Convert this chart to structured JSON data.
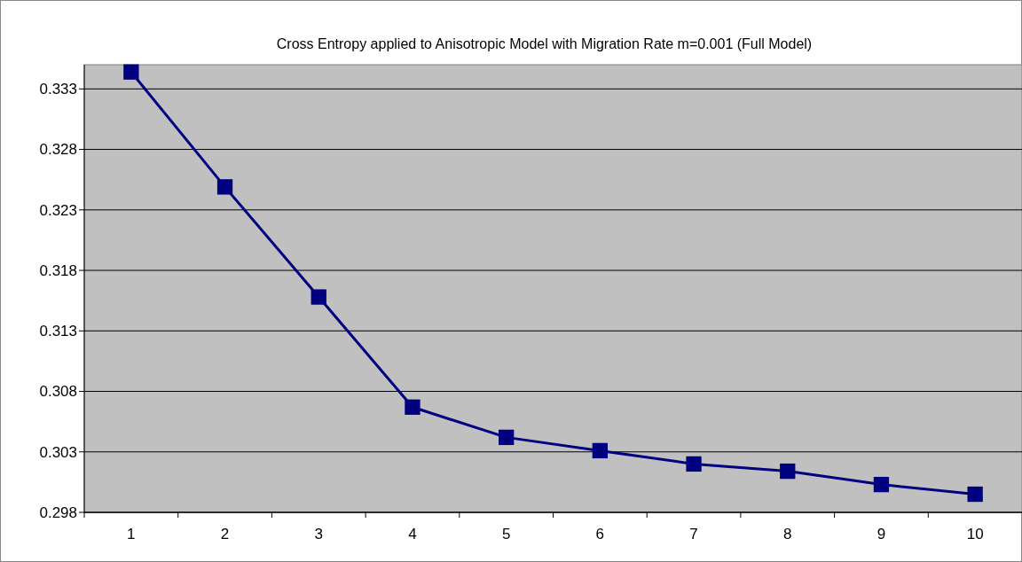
{
  "chart_data": {
    "type": "line",
    "title": "Cross Entropy applied to Anisotropic Model with Migration Rate m=0.001 (Full Model)",
    "categories": [
      "1",
      "2",
      "3",
      "4",
      "5",
      "6",
      "7",
      "8",
      "9",
      "10"
    ],
    "series": [
      {
        "color": "#000080",
        "values": [
          0.3344,
          0.3249,
          0.3158,
          0.3067,
          0.3042,
          0.3031,
          0.302,
          0.3014,
          0.3003,
          0.2995
        ]
      }
    ],
    "ylim": [
      0.298,
      0.335
    ],
    "yticks": [
      0.298,
      0.303,
      0.308,
      0.313,
      0.318,
      0.323,
      0.328,
      0.333
    ],
    "grid": "y",
    "marker": "square"
  }
}
